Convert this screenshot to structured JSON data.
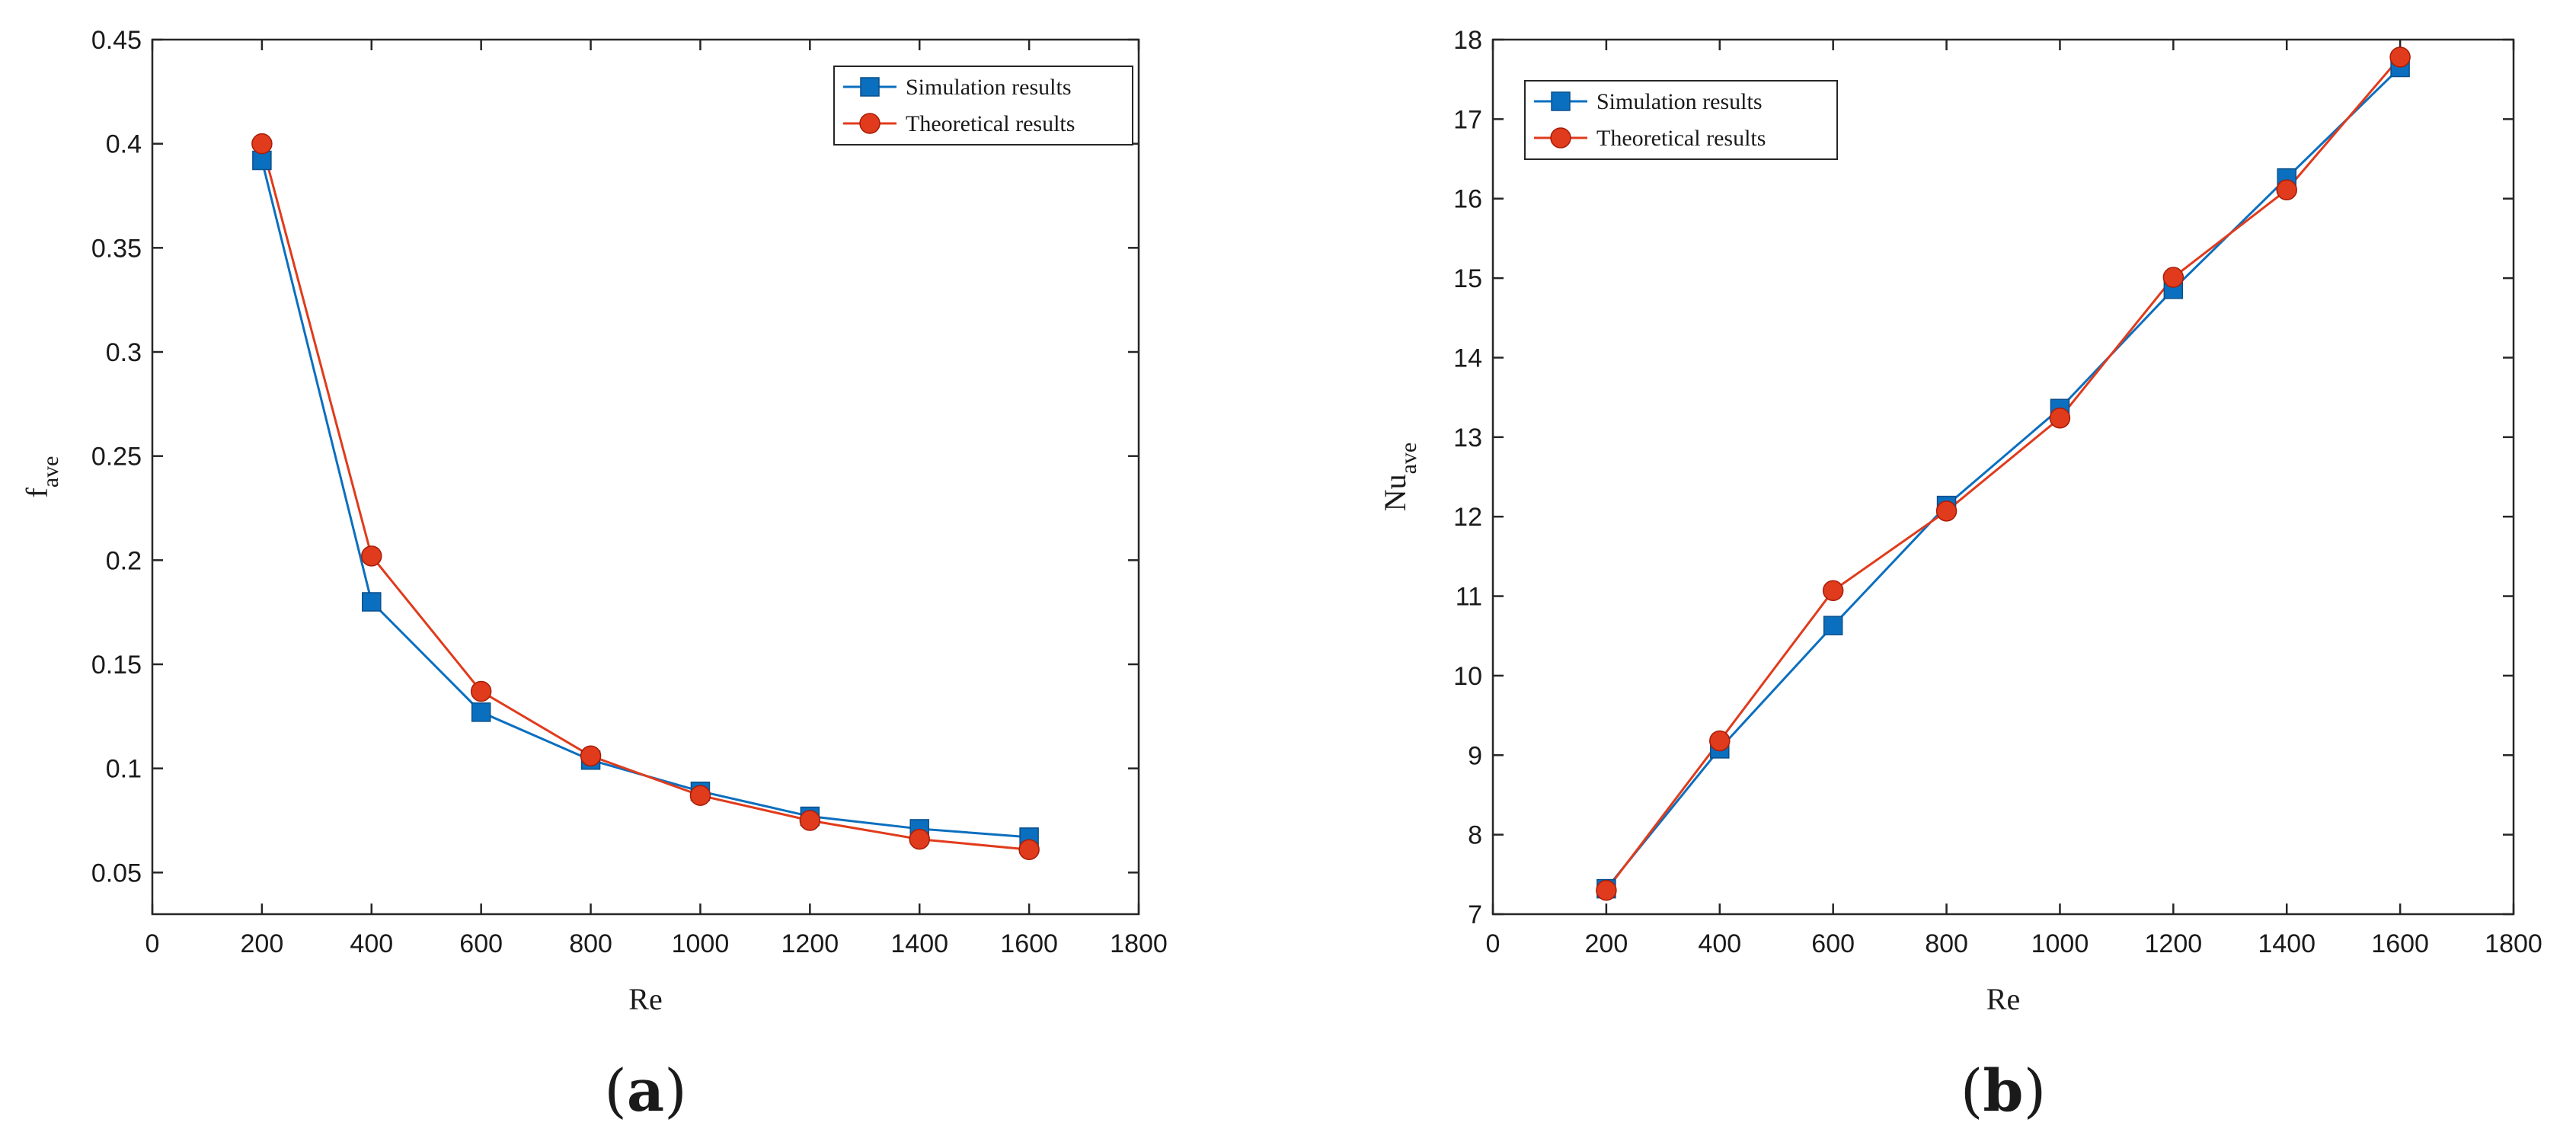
{
  "chart_data": [
    {
      "type": "line",
      "panel_label": "a",
      "xlabel": "Re",
      "ylabel": {
        "main": "f",
        "sub": "ave"
      },
      "xlim": [
        0,
        1800
      ],
      "ylim": [
        0.03,
        0.45
      ],
      "xticks": [
        0,
        200,
        400,
        600,
        800,
        1000,
        1200,
        1400,
        1600,
        1800
      ],
      "yticks": [
        0.05,
        0.1,
        0.15,
        0.2,
        0.25,
        0.3,
        0.35,
        0.4,
        0.45
      ],
      "xtick_labels": [
        "0",
        "200",
        "400",
        "600",
        "800",
        "1000",
        "1200",
        "1400",
        "1600",
        "1800"
      ],
      "ytick_labels": [
        "0.05",
        "0.1",
        "0.15",
        "0.2",
        "0.25",
        "0.3",
        "0.35",
        "0.4",
        "0.45"
      ],
      "legend_position": "top-right",
      "x": [
        200,
        400,
        600,
        800,
        1000,
        1200,
        1400,
        1600
      ],
      "series": [
        {
          "name": "Simulation results",
          "marker": "square",
          "color": "#0b6fbf",
          "values": [
            0.392,
            0.18,
            0.127,
            0.104,
            0.089,
            0.077,
            0.071,
            0.067
          ]
        },
        {
          "name": "Theoretical results",
          "marker": "circle",
          "color": "#e03b1c",
          "values": [
            0.4,
            0.202,
            0.137,
            0.106,
            0.087,
            0.075,
            0.066,
            0.061
          ]
        }
      ]
    },
    {
      "type": "line",
      "panel_label": "b",
      "xlabel": "Re",
      "ylabel": {
        "main": "Nu",
        "sub": "ave"
      },
      "xlim": [
        0,
        1800
      ],
      "ylim": [
        7,
        18
      ],
      "xticks": [
        0,
        200,
        400,
        600,
        800,
        1000,
        1200,
        1400,
        1600,
        1800
      ],
      "yticks": [
        7,
        8,
        9,
        10,
        11,
        12,
        13,
        14,
        15,
        16,
        17,
        18
      ],
      "xtick_labels": [
        "0",
        "200",
        "400",
        "600",
        "800",
        "1000",
        "1200",
        "1400",
        "1600",
        "1800"
      ],
      "ytick_labels": [
        "7",
        "8",
        "9",
        "10",
        "11",
        "12",
        "13",
        "14",
        "15",
        "16",
        "17",
        "18"
      ],
      "legend_position": "top-left",
      "x": [
        200,
        400,
        600,
        800,
        1000,
        1200,
        1400,
        1600
      ],
      "series": [
        {
          "name": "Simulation results",
          "marker": "square",
          "color": "#0b6fbf",
          "values": [
            7.32,
            9.08,
            10.63,
            12.14,
            13.36,
            14.86,
            16.26,
            17.65
          ]
        },
        {
          "name": "Theoretical results",
          "marker": "circle",
          "color": "#e03b1c",
          "values": [
            7.3,
            9.18,
            11.07,
            12.07,
            13.24,
            15.01,
            16.11,
            17.78
          ]
        }
      ]
    }
  ]
}
